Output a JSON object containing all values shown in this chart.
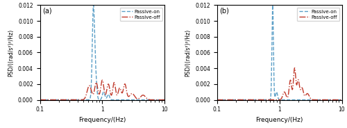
{
  "title": "",
  "xlabel": "Frequency/(Hz)",
  "ylabel": "PSD/((rad/s²)²/Hz)",
  "xlim": [
    0.1,
    10
  ],
  "ylim": [
    0,
    0.012
  ],
  "yticks": [
    0.0,
    0.002,
    0.004,
    0.006,
    0.008,
    0.01,
    0.012
  ],
  "panel_a_label": "(a)",
  "panel_b_label": "(b)",
  "passive_on_color": "#5b9fc7",
  "passive_off_color": "#c0392b",
  "legend_entries": [
    "Passive-on",
    "Passive-off"
  ],
  "figsize": [
    5.0,
    1.84
  ],
  "dpi": 100
}
